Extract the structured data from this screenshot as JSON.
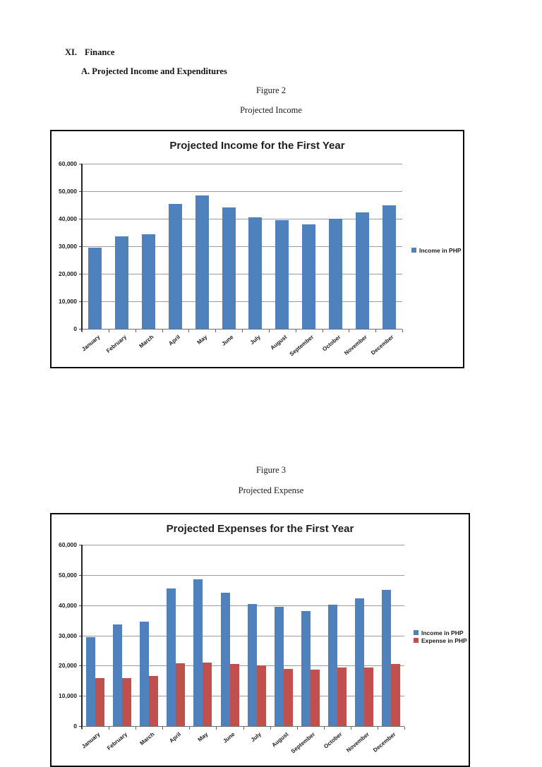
{
  "document": {
    "heading": {
      "number": "XI.",
      "text": "Finance"
    },
    "subheading": "A. Projected Income and Expenditures",
    "figures": [
      {
        "label": "Figure 2",
        "caption": "Projected Income"
      },
      {
        "label": "Figure 3",
        "caption": "Projected Expense"
      }
    ]
  },
  "colors": {
    "income_blue": "#4F81BD",
    "expense_red": "#C0504D",
    "gridline_gray": "#9b9b9b",
    "chart_border": "#0a0a0a"
  },
  "chart_data": [
    {
      "type": "bar",
      "title": "Projected Income for the First Year",
      "categories": [
        "January",
        "February",
        "March",
        "April",
        "May",
        "June",
        "July",
        "August",
        "September",
        "October",
        "November",
        "December"
      ],
      "series": [
        {
          "name": "Income in PHP",
          "color": "#4F81BD",
          "values": [
            29500,
            33700,
            34500,
            45500,
            48500,
            44200,
            40400,
            39400,
            38000,
            40100,
            42200,
            45000
          ]
        }
      ],
      "xlabel": "",
      "ylabel": "",
      "ylim": [
        0,
        60000
      ],
      "ytick_interval": 10000,
      "yticks": [
        0,
        10000,
        20000,
        30000,
        40000,
        50000,
        60000
      ],
      "grid": true,
      "legend_position": "right"
    },
    {
      "type": "bar",
      "title": "Projected Expenses for the First Year",
      "categories": [
        "January",
        "February",
        "March",
        "April",
        "May",
        "June",
        "July",
        "August",
        "September",
        "October",
        "November",
        "December"
      ],
      "series": [
        {
          "name": "Income in PHP",
          "color": "#4F81BD",
          "values": [
            29500,
            33700,
            34500,
            45500,
            48500,
            44200,
            40400,
            39400,
            38000,
            40100,
            42200,
            45000
          ]
        },
        {
          "name": "Expense in PHP",
          "color": "#C0504D",
          "values": [
            16000,
            16000,
            16500,
            20800,
            21000,
            20500,
            20000,
            19000,
            18700,
            19500,
            19500,
            20500
          ]
        }
      ],
      "xlabel": "",
      "ylabel": "",
      "ylim": [
        0,
        60000
      ],
      "ytick_interval": 10000,
      "yticks": [
        0,
        10000,
        20000,
        30000,
        40000,
        50000,
        60000
      ],
      "grid": true,
      "legend_position": "right"
    }
  ]
}
